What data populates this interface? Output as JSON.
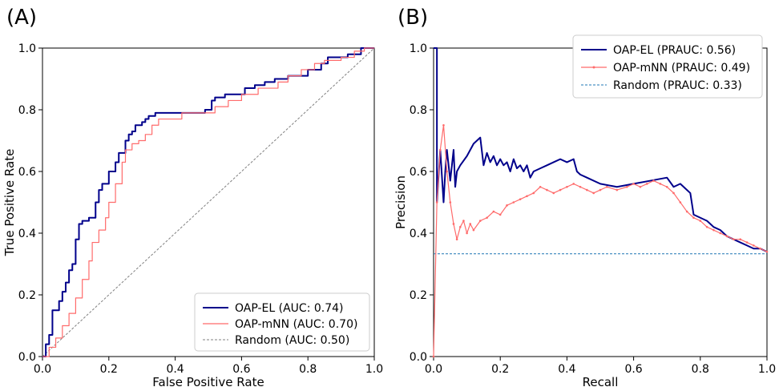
{
  "chart_data": [
    {
      "panel_label": "(A)",
      "type": "line",
      "xlabel": "False Positive Rate",
      "ylabel": "True Positive Rate",
      "xlim": [
        0,
        1
      ],
      "ylim": [
        0,
        1
      ],
      "xticks": [
        "0.0",
        "0.2",
        "0.4",
        "0.6",
        "0.8",
        "1.0"
      ],
      "yticks": [
        "0.0",
        "0.2",
        "0.4",
        "0.6",
        "0.8",
        "1.0"
      ],
      "grid": false,
      "legend_position": "lower-right",
      "series": [
        {
          "name": "OAP-EL (AUC: 0.74)",
          "color": "#00008b",
          "style": "step",
          "x": [
            0,
            0.01,
            0.01,
            0.02,
            0.02,
            0.03,
            0.03,
            0.05,
            0.05,
            0.06,
            0.06,
            0.07,
            0.07,
            0.08,
            0.08,
            0.09,
            0.09,
            0.1,
            0.1,
            0.11,
            0.11,
            0.12,
            0.12,
            0.14,
            0.14,
            0.16,
            0.16,
            0.17,
            0.17,
            0.18,
            0.18,
            0.2,
            0.2,
            0.22,
            0.22,
            0.23,
            0.23,
            0.25,
            0.25,
            0.26,
            0.26,
            0.27,
            0.27,
            0.28,
            0.28,
            0.3,
            0.3,
            0.31,
            0.31,
            0.32,
            0.32,
            0.34,
            0.34,
            0.49,
            0.49,
            0.51,
            0.51,
            0.52,
            0.52,
            0.55,
            0.55,
            0.61,
            0.61,
            0.64,
            0.64,
            0.67,
            0.67,
            0.7,
            0.7,
            0.74,
            0.74,
            0.8,
            0.8,
            0.84,
            0.84,
            0.86,
            0.86,
            0.92,
            0.92,
            0.96,
            0.96,
            1.0,
            1.0
          ],
          "y": [
            0,
            0,
            0.04,
            0.04,
            0.07,
            0.07,
            0.15,
            0.15,
            0.18,
            0.18,
            0.21,
            0.21,
            0.24,
            0.24,
            0.28,
            0.28,
            0.3,
            0.3,
            0.38,
            0.38,
            0.43,
            0.43,
            0.44,
            0.44,
            0.45,
            0.45,
            0.5,
            0.5,
            0.54,
            0.54,
            0.56,
            0.56,
            0.6,
            0.6,
            0.63,
            0.63,
            0.66,
            0.66,
            0.7,
            0.7,
            0.72,
            0.72,
            0.73,
            0.73,
            0.75,
            0.75,
            0.76,
            0.76,
            0.77,
            0.77,
            0.78,
            0.78,
            0.79,
            0.79,
            0.8,
            0.8,
            0.83,
            0.83,
            0.84,
            0.84,
            0.85,
            0.85,
            0.87,
            0.87,
            0.88,
            0.88,
            0.89,
            0.89,
            0.9,
            0.9,
            0.91,
            0.91,
            0.93,
            0.93,
            0.95,
            0.95,
            0.97,
            0.97,
            0.98,
            0.98,
            1.0,
            1.0,
            1.0
          ]
        },
        {
          "name": "OAP-mNN (AUC: 0.70)",
          "color": "#ff6b6b",
          "style": "step",
          "x": [
            0,
            0.02,
            0.02,
            0.04,
            0.04,
            0.06,
            0.06,
            0.08,
            0.08,
            0.1,
            0.1,
            0.12,
            0.12,
            0.14,
            0.14,
            0.15,
            0.15,
            0.17,
            0.17,
            0.19,
            0.19,
            0.2,
            0.2,
            0.22,
            0.22,
            0.24,
            0.24,
            0.25,
            0.25,
            0.27,
            0.27,
            0.29,
            0.29,
            0.31,
            0.31,
            0.33,
            0.33,
            0.35,
            0.35,
            0.42,
            0.42,
            0.52,
            0.52,
            0.56,
            0.56,
            0.6,
            0.6,
            0.65,
            0.65,
            0.71,
            0.71,
            0.74,
            0.74,
            0.78,
            0.78,
            0.82,
            0.82,
            0.85,
            0.85,
            0.9,
            0.9,
            0.94,
            0.94,
            0.97,
            0.97,
            1.0,
            1.0
          ],
          "y": [
            0,
            0,
            0.03,
            0.03,
            0.06,
            0.06,
            0.1,
            0.1,
            0.14,
            0.14,
            0.19,
            0.19,
            0.25,
            0.25,
            0.31,
            0.31,
            0.37,
            0.37,
            0.41,
            0.41,
            0.45,
            0.45,
            0.5,
            0.5,
            0.56,
            0.56,
            0.63,
            0.63,
            0.67,
            0.67,
            0.69,
            0.69,
            0.7,
            0.7,
            0.72,
            0.72,
            0.75,
            0.75,
            0.77,
            0.77,
            0.79,
            0.79,
            0.81,
            0.81,
            0.83,
            0.83,
            0.85,
            0.85,
            0.87,
            0.87,
            0.89,
            0.89,
            0.91,
            0.91,
            0.93,
            0.93,
            0.95,
            0.95,
            0.96,
            0.96,
            0.97,
            0.97,
            0.99,
            0.99,
            1.0,
            1.0,
            1.0
          ]
        },
        {
          "name": "Random (AUC: 0.50)",
          "color": "#808080",
          "style": "dashed",
          "x": [
            0,
            1
          ],
          "y": [
            0,
            1
          ]
        }
      ]
    },
    {
      "panel_label": "(B)",
      "type": "line",
      "xlabel": "Recall",
      "ylabel": "Precision",
      "xlim": [
        0,
        1
      ],
      "ylim": [
        0,
        1
      ],
      "xticks": [
        "0.0",
        "0.2",
        "0.4",
        "0.6",
        "0.8",
        "1.0"
      ],
      "yticks": [
        "0.0",
        "0.2",
        "0.4",
        "0.6",
        "0.8",
        "1.0"
      ],
      "grid": false,
      "legend_position": "upper-right",
      "series": [
        {
          "name": "OAP-EL (PRAUC: 0.56)",
          "color": "#00008b",
          "style": "line",
          "x": [
            0,
            0.01,
            0.01,
            0.02,
            0.03,
            0.035,
            0.04,
            0.05,
            0.06,
            0.065,
            0.07,
            0.08,
            0.1,
            0.12,
            0.14,
            0.15,
            0.16,
            0.17,
            0.18,
            0.19,
            0.2,
            0.21,
            0.22,
            0.23,
            0.24,
            0.25,
            0.26,
            0.27,
            0.28,
            0.29,
            0.3,
            0.32,
            0.34,
            0.36,
            0.38,
            0.4,
            0.42,
            0.43,
            0.44,
            0.46,
            0.5,
            0.55,
            0.6,
            0.65,
            0.7,
            0.72,
            0.74,
            0.76,
            0.77,
            0.78,
            0.8,
            0.82,
            0.84,
            0.86,
            0.88,
            0.9,
            0.92,
            0.94,
            0.96,
            0.98,
            1.0
          ],
          "y": [
            1.0,
            1.0,
            0.5,
            0.67,
            0.5,
            0.6,
            0.67,
            0.57,
            0.67,
            0.55,
            0.6,
            0.62,
            0.65,
            0.69,
            0.71,
            0.62,
            0.66,
            0.63,
            0.65,
            0.62,
            0.64,
            0.62,
            0.63,
            0.6,
            0.64,
            0.61,
            0.62,
            0.6,
            0.62,
            0.58,
            0.6,
            0.61,
            0.62,
            0.63,
            0.64,
            0.63,
            0.64,
            0.6,
            0.59,
            0.58,
            0.56,
            0.55,
            0.56,
            0.57,
            0.58,
            0.55,
            0.56,
            0.54,
            0.53,
            0.46,
            0.45,
            0.44,
            0.42,
            0.41,
            0.39,
            0.38,
            0.37,
            0.36,
            0.35,
            0.35,
            0.34
          ]
        },
        {
          "name": "OAP-mNN (PRAUC: 0.49)",
          "color": "#ff6b6b",
          "style": "line-markers",
          "x": [
            0,
            0.01,
            0.02,
            0.03,
            0.04,
            0.05,
            0.06,
            0.07,
            0.08,
            0.09,
            0.1,
            0.11,
            0.12,
            0.14,
            0.16,
            0.18,
            0.2,
            0.22,
            0.24,
            0.26,
            0.28,
            0.3,
            0.32,
            0.34,
            0.36,
            0.38,
            0.4,
            0.42,
            0.44,
            0.46,
            0.48,
            0.5,
            0.52,
            0.55,
            0.58,
            0.6,
            0.62,
            0.64,
            0.66,
            0.68,
            0.7,
            0.72,
            0.74,
            0.76,
            0.78,
            0.8,
            0.82,
            0.84,
            0.86,
            0.88,
            0.9,
            0.92,
            0.94,
            0.96,
            0.98,
            1.0
          ],
          "y": [
            0,
            0.5,
            0.67,
            0.75,
            0.6,
            0.5,
            0.43,
            0.38,
            0.42,
            0.44,
            0.4,
            0.43,
            0.41,
            0.44,
            0.45,
            0.47,
            0.46,
            0.49,
            0.5,
            0.51,
            0.52,
            0.53,
            0.55,
            0.54,
            0.53,
            0.54,
            0.55,
            0.56,
            0.55,
            0.54,
            0.53,
            0.54,
            0.55,
            0.54,
            0.55,
            0.56,
            0.55,
            0.56,
            0.57,
            0.56,
            0.55,
            0.53,
            0.5,
            0.47,
            0.45,
            0.44,
            0.42,
            0.41,
            0.4,
            0.39,
            0.38,
            0.38,
            0.37,
            0.36,
            0.35,
            0.34
          ]
        },
        {
          "name": "Random (PRAUC: 0.33)",
          "color": "#1f77b4",
          "style": "dashed",
          "x": [
            0,
            1
          ],
          "y": [
            0.333,
            0.333
          ]
        }
      ]
    }
  ]
}
